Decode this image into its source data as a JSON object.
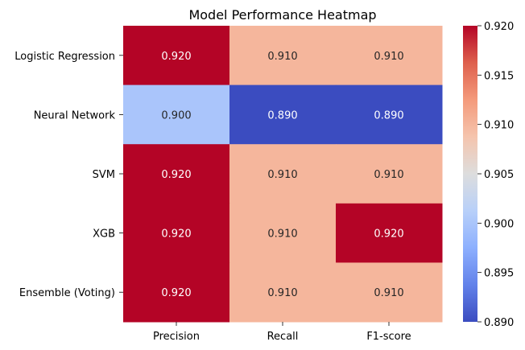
{
  "chart_data": {
    "type": "heatmap",
    "title": "Model Performance Heatmap",
    "rows": [
      "Logistic Regression",
      "Neural Network",
      "SVM",
      "XGB",
      "Ensemble (Voting)"
    ],
    "columns": [
      "Precision",
      "Recall",
      "F1-score"
    ],
    "values": [
      [
        0.92,
        0.91,
        0.91
      ],
      [
        0.9,
        0.89,
        0.89
      ],
      [
        0.92,
        0.91,
        0.91
      ],
      [
        0.92,
        0.91,
        0.92
      ],
      [
        0.92,
        0.91,
        0.91
      ]
    ],
    "cell_labels": [
      [
        "0.920",
        "0.910",
        "0.910"
      ],
      [
        "0.900",
        "0.890",
        "0.890"
      ],
      [
        "0.920",
        "0.910",
        "0.910"
      ],
      [
        "0.920",
        "0.910",
        "0.920"
      ],
      [
        "0.920",
        "0.910",
        "0.910"
      ]
    ],
    "colormap": "coolwarm",
    "vmin": 0.89,
    "vmax": 0.92,
    "colorbar": {
      "ticks": [
        "0.890",
        "0.895",
        "0.900",
        "0.905",
        "0.910",
        "0.915",
        "0.920"
      ]
    }
  }
}
